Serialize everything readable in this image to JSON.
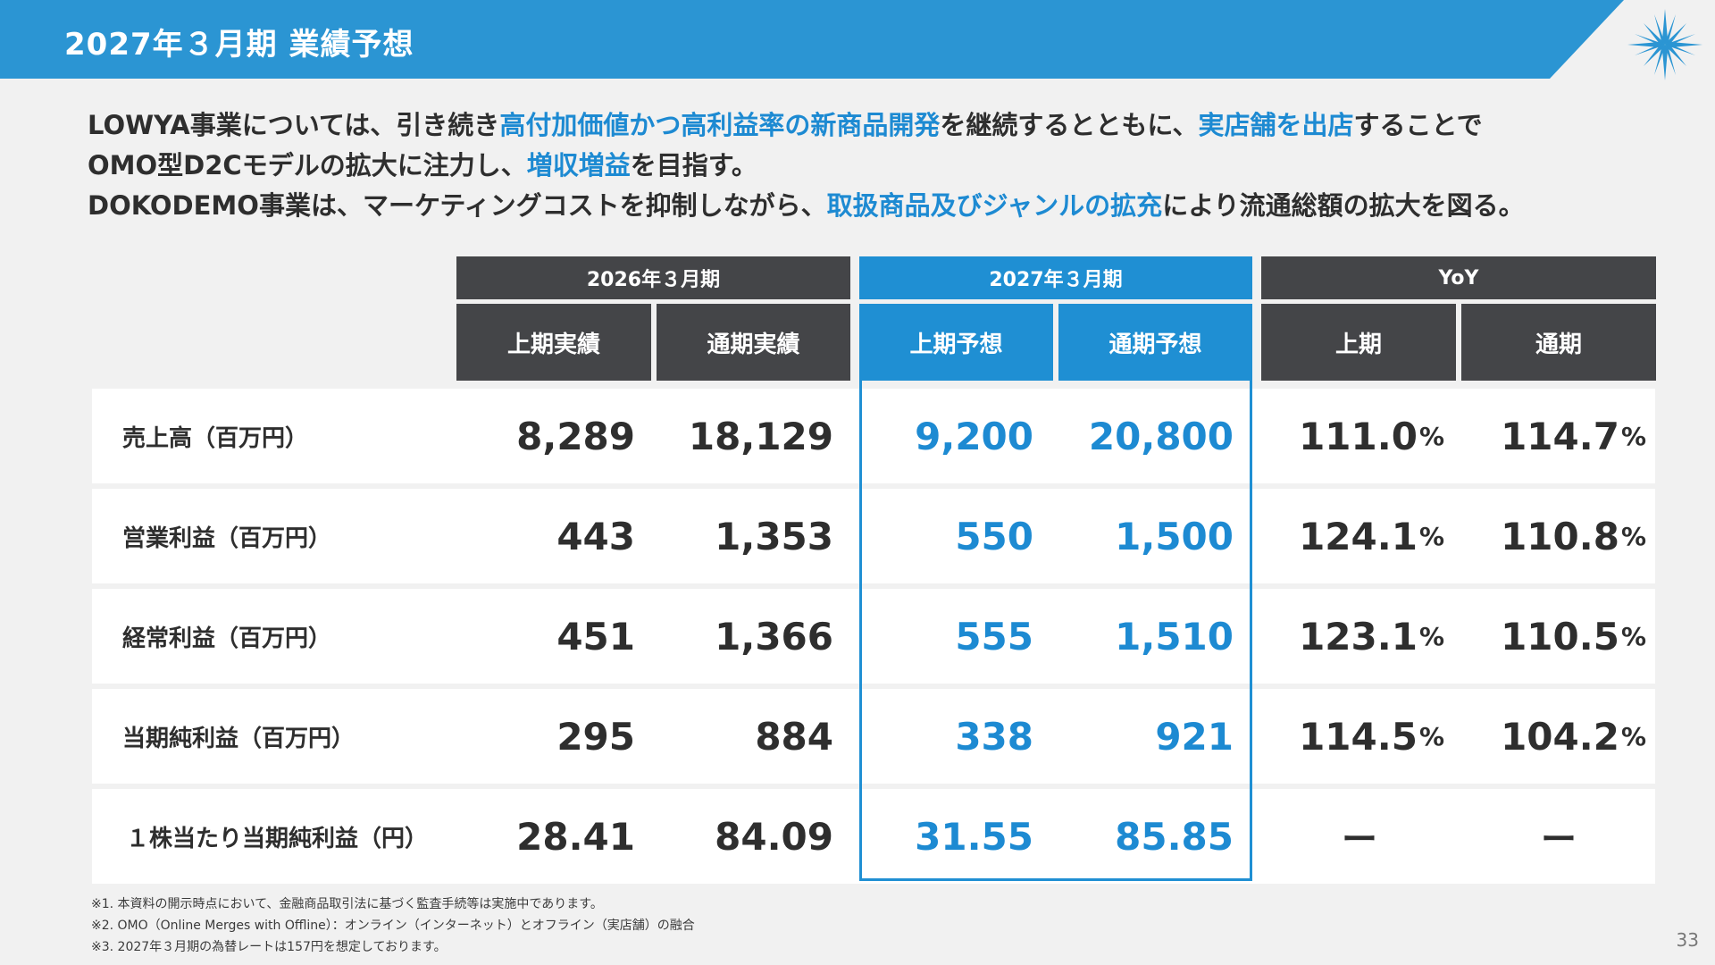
{
  "header": {
    "title": "2027年３月期 業績予想",
    "accent_color": "#2b95d3",
    "logo_icon": "star-burst-icon"
  },
  "intro": {
    "line1": {
      "t1": "LOWYA事業については、引き続き",
      "h1": "高付加価値かつ高利益率の新商品開発",
      "t2": "を継続するとともに、",
      "h2": "実店舗を出店",
      "t3": "することで"
    },
    "line2": {
      "t1": "OMO型D2Cモデルの拡大に注力し、",
      "h1": "増収増益",
      "t2": "を目指す。"
    },
    "line3": {
      "t1": "DOKODEMO事業は、マーケティングコストを抑制しながら、",
      "h1": "取扱商品及びジャンルの拡充",
      "t2": "により流通総額の拡大を図る。"
    }
  },
  "table": {
    "groups": [
      "2026年３月期",
      "2027年３月期",
      "YoY"
    ],
    "subheaders": [
      "上期実績",
      "通期実績",
      "上期予想",
      "通期予想",
      "上期",
      "通期"
    ],
    "pct_unit": "%",
    "rows": [
      {
        "label": "売上高（百万円）",
        "h1_actual": "8,289",
        "fy_actual": "18,129",
        "h1_forecast": "9,200",
        "fy_forecast": "20,800",
        "yoy_h1": "111.0",
        "yoy_fy": "114.7"
      },
      {
        "label": "営業利益（百万円）",
        "h1_actual": "443",
        "fy_actual": "1,353",
        "h1_forecast": "550",
        "fy_forecast": "1,500",
        "yoy_h1": "124.1",
        "yoy_fy": "110.8"
      },
      {
        "label": "経常利益（百万円）",
        "h1_actual": "451",
        "fy_actual": "1,366",
        "h1_forecast": "555",
        "fy_forecast": "1,510",
        "yoy_h1": "123.1",
        "yoy_fy": "110.5"
      },
      {
        "label": "当期純利益（百万円）",
        "h1_actual": "295",
        "fy_actual": "884",
        "h1_forecast": "338",
        "fy_forecast": "921",
        "yoy_h1": "114.5",
        "yoy_fy": "104.2"
      },
      {
        "label": "１株当たり当期純利益（円）",
        "h1_actual": "28.41",
        "fy_actual": "84.09",
        "h1_forecast": "31.55",
        "fy_forecast": "85.85",
        "yoy_h1": "ー",
        "yoy_fy": "ー"
      }
    ]
  },
  "notes": [
    "※1. 本資料の開示時点において、金融商品取引法に基づく監査手続等は実施中であります。",
    "※2. OMO（Online Merges with Offline）：オンライン（インターネット）とオフライン（実店舗）の融合",
    "※3. 2027年３月期の為替レートは157円を想定しております。"
  ],
  "page_number": "33",
  "colors": {
    "highlight": "#1d8ad2",
    "dark_header": "#444548",
    "blue_header": "#1f8fd3"
  }
}
